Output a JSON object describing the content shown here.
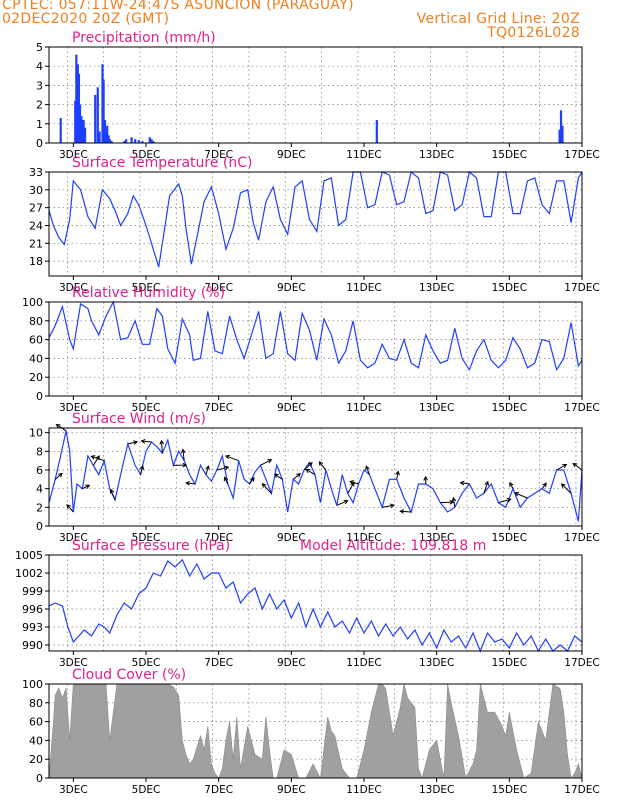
{
  "header": {
    "line1": "CPTEC:   057:11W-24:47S   ASUNCION (PARAGUAY)",
    "line2": "02DEC2020 20Z (GMT)",
    "grid_note": "Vertical Grid Line: 20Z",
    "code": "TQ0126L028"
  },
  "colors": {
    "header": "#f08020",
    "title": "#e0208c",
    "line": "#1f3fff",
    "cloud": "#a0a0a0",
    "wind_arrow": "#000000"
  },
  "chart_data": [
    {
      "id": "precip",
      "type": "bar",
      "title": "Precipitation (mm/h)",
      "x_unit": "days since 02DEC2020 00Z",
      "xlim": [
        2.33,
        17.0
      ],
      "x_tick_labels": [
        "3DEC",
        "5DEC",
        "7DEC",
        "9DEC",
        "11DEC",
        "13DEC",
        "15DEC",
        "17DEC"
      ],
      "ylim": [
        0,
        5
      ],
      "y_ticks": [
        0,
        1,
        2,
        3,
        4,
        5
      ],
      "grid": true,
      "x": [
        2.65,
        3.05,
        3.08,
        3.12,
        3.15,
        3.18,
        3.22,
        3.25,
        3.28,
        3.32,
        3.6,
        3.67,
        3.72,
        3.8,
        3.83,
        3.87,
        3.9,
        3.93,
        3.97,
        4.0,
        4.05,
        4.4,
        4.45,
        4.6,
        4.7,
        4.8,
        4.9,
        5.1,
        5.15,
        5.2,
        11.35,
        16.38,
        16.42,
        16.46
      ],
      "values": [
        1.3,
        2.2,
        4.6,
        4.1,
        3.6,
        2.0,
        1.4,
        1.0,
        1.2,
        0.8,
        2.5,
        2.9,
        0.6,
        4.1,
        3.3,
        1.2,
        0.7,
        0.9,
        0.4,
        0.2,
        0.1,
        0.1,
        0.2,
        0.3,
        0.2,
        0.15,
        0.1,
        0.3,
        0.2,
        0.1,
        1.2,
        0.7,
        1.7,
        0.9
      ]
    },
    {
      "id": "temp",
      "type": "line",
      "title": "Surface Temperature (nC)",
      "x_unit": "days since 02DEC2020 00Z",
      "xlim": [
        2.33,
        17.0
      ],
      "x_tick_labels": [
        "3DEC",
        "5DEC",
        "7DEC",
        "9DEC",
        "11DEC",
        "13DEC",
        "15DEC",
        "17DEC"
      ],
      "ylim": [
        15.5,
        33
      ],
      "y_ticks": [
        18,
        21,
        24,
        27,
        30,
        33
      ],
      "grid": true,
      "x": [
        2.33,
        2.45,
        2.6,
        2.75,
        2.9,
        3.0,
        3.2,
        3.4,
        3.6,
        3.8,
        4.0,
        4.15,
        4.3,
        4.5,
        4.65,
        4.8,
        5.0,
        5.2,
        5.35,
        5.5,
        5.65,
        5.9,
        6.0,
        6.1,
        6.25,
        6.4,
        6.6,
        6.8,
        7.0,
        7.2,
        7.4,
        7.6,
        7.8,
        7.95,
        8.1,
        8.3,
        8.5,
        8.7,
        8.9,
        9.1,
        9.3,
        9.5,
        9.7,
        9.9,
        10.1,
        10.3,
        10.5,
        10.7,
        10.9,
        11.1,
        11.3,
        11.5,
        11.7,
        11.9,
        12.1,
        12.3,
        12.5,
        12.7,
        12.9,
        13.1,
        13.3,
        13.5,
        13.7,
        13.9,
        14.1,
        14.3,
        14.5,
        14.7,
        14.9,
        15.1,
        15.3,
        15.5,
        15.7,
        15.9,
        16.1,
        16.3,
        16.5,
        16.7,
        16.9,
        17.0
      ],
      "values": [
        26.5,
        24.0,
        22.0,
        20.8,
        25.0,
        31.5,
        30.0,
        25.5,
        23.5,
        30.0,
        28.5,
        26.5,
        24.0,
        26.0,
        29.0,
        27.5,
        24.0,
        20.0,
        17.0,
        23.0,
        29.0,
        31.0,
        29.0,
        23.5,
        17.5,
        22.0,
        28.0,
        30.5,
        26.0,
        20.0,
        23.5,
        29.5,
        30.0,
        24.5,
        21.5,
        28.0,
        30.5,
        25.0,
        22.5,
        30.5,
        31.5,
        25.0,
        23.0,
        31.5,
        32.0,
        24.0,
        25.0,
        33.0,
        33.0,
        27.0,
        27.5,
        33.0,
        32.5,
        27.5,
        28.0,
        33.0,
        32.0,
        26.0,
        26.5,
        33.0,
        32.5,
        26.5,
        27.5,
        33.0,
        32.0,
        25.5,
        25.5,
        33.0,
        33.0,
        26.0,
        26.0,
        31.5,
        32.0,
        27.5,
        26.0,
        31.5,
        31.5,
        24.5,
        32.0,
        33.0
      ]
    },
    {
      "id": "rh",
      "type": "line",
      "title": "Relative Humidity (%)",
      "x_unit": "days since 02DEC2020 00Z",
      "xlim": [
        2.33,
        17.0
      ],
      "x_tick_labels": [
        "3DEC",
        "5DEC",
        "7DEC",
        "9DEC",
        "11DEC",
        "13DEC",
        "15DEC",
        "17DEC"
      ],
      "ylim": [
        0,
        100
      ],
      "y_ticks": [
        0,
        20,
        40,
        60,
        80,
        100
      ],
      "grid": true,
      "x": [
        2.33,
        2.5,
        2.7,
        2.9,
        3.0,
        3.2,
        3.4,
        3.5,
        3.7,
        3.9,
        4.1,
        4.3,
        4.5,
        4.7,
        4.9,
        5.1,
        5.3,
        5.45,
        5.6,
        5.8,
        6.0,
        6.2,
        6.3,
        6.5,
        6.7,
        6.9,
        7.1,
        7.3,
        7.5,
        7.7,
        7.9,
        8.1,
        8.3,
        8.5,
        8.7,
        8.9,
        9.1,
        9.3,
        9.5,
        9.7,
        9.9,
        10.1,
        10.3,
        10.5,
        10.7,
        10.9,
        11.1,
        11.3,
        11.5,
        11.7,
        11.9,
        12.1,
        12.3,
        12.5,
        12.7,
        12.9,
        13.1,
        13.3,
        13.5,
        13.7,
        13.9,
        14.1,
        14.3,
        14.5,
        14.7,
        14.9,
        15.1,
        15.3,
        15.5,
        15.7,
        15.9,
        16.1,
        16.3,
        16.5,
        16.7,
        16.9,
        17.0
      ],
      "values": [
        62,
        75,
        95,
        60,
        50,
        98,
        93,
        80,
        65,
        85,
        100,
        60,
        62,
        80,
        55,
        55,
        93,
        85,
        50,
        35,
        82,
        65,
        38,
        40,
        90,
        48,
        45,
        85,
        60,
        40,
        65,
        90,
        40,
        45,
        90,
        45,
        38,
        88,
        70,
        38,
        82,
        65,
        35,
        48,
        80,
        38,
        30,
        35,
        55,
        40,
        38,
        60,
        35,
        30,
        65,
        48,
        35,
        38,
        72,
        40,
        28,
        48,
        60,
        38,
        30,
        38,
        62,
        50,
        30,
        35,
        60,
        58,
        28,
        40,
        78,
        32,
        38
      ]
    },
    {
      "id": "wind",
      "type": "line",
      "title": "Surface Wind (m/s)",
      "x_unit": "days since 02DEC2020 00Z",
      "xlim": [
        2.33,
        17.0
      ],
      "x_tick_labels": [
        "3DEC",
        "5DEC",
        "7DEC",
        "9DEC",
        "11DEC",
        "13DEC",
        "15DEC",
        "17DEC"
      ],
      "ylim": [
        0,
        10.5
      ],
      "y_ticks": [
        0,
        2,
        4,
        6,
        8,
        10
      ],
      "grid": true,
      "x": [
        2.33,
        2.5,
        2.65,
        2.8,
        2.9,
        3.0,
        3.1,
        3.25,
        3.4,
        3.55,
        3.7,
        3.85,
        4.0,
        4.15,
        4.3,
        4.5,
        4.7,
        4.85,
        5.0,
        5.15,
        5.3,
        5.45,
        5.6,
        5.75,
        5.9,
        6.05,
        6.2,
        6.35,
        6.5,
        6.65,
        6.8,
        6.95,
        7.1,
        7.25,
        7.4,
        7.55,
        7.7,
        7.85,
        8.0,
        8.15,
        8.3,
        8.45,
        8.6,
        8.75,
        8.9,
        9.05,
        9.2,
        9.35,
        9.5,
        9.65,
        9.8,
        9.95,
        10.1,
        10.25,
        10.4,
        10.55,
        10.7,
        10.85,
        11.0,
        11.15,
        11.3,
        11.5,
        11.7,
        11.9,
        12.1,
        12.3,
        12.5,
        12.7,
        12.9,
        13.1,
        13.3,
        13.5,
        13.7,
        13.9,
        14.1,
        14.3,
        14.5,
        14.7,
        14.9,
        15.1,
        15.3,
        15.5,
        15.7,
        15.9,
        16.1,
        16.3,
        16.5,
        16.7,
        16.9,
        17.0
      ],
      "values": [
        2.5,
        5.0,
        7.5,
        10.2,
        8.0,
        1.5,
        4.5,
        4.0,
        7.5,
        6.5,
        5.5,
        7.0,
        4.0,
        2.8,
        5.5,
        8.8,
        6.5,
        5.5,
        8.0,
        9.0,
        8.5,
        7.8,
        9.2,
        6.5,
        8.0,
        7.0,
        5.5,
        4.5,
        6.5,
        5.5,
        4.8,
        6.0,
        7.5,
        4.5,
        3.0,
        7.0,
        5.0,
        4.5,
        5.8,
        6.5,
        5.0,
        3.5,
        6.5,
        5.0,
        1.5,
        5.0,
        4.5,
        6.0,
        6.8,
        5.5,
        2.5,
        6.0,
        4.0,
        2.2,
        5.5,
        3.5,
        2.5,
        4.5,
        6.0,
        5.5,
        4.0,
        2.0,
        5.0,
        5.0,
        3.0,
        1.5,
        4.5,
        4.5,
        4.0,
        2.5,
        1.5,
        2.0,
        3.5,
        4.5,
        3.0,
        3.5,
        4.5,
        2.5,
        2.0,
        4.0,
        2.0,
        3.0,
        3.5,
        4.0,
        3.5,
        6.0,
        6.0,
        3.5,
        0.5,
        6.0
      ]
    },
    {
      "id": "pres",
      "type": "line",
      "title": "Surface Pressure (hPa)",
      "annotation": "Model Altitude: 109.818 m",
      "x_unit": "days since 02DEC2020 00Z",
      "xlim": [
        2.33,
        17.0
      ],
      "x_tick_labels": [
        "3DEC",
        "5DEC",
        "7DEC",
        "9DEC",
        "11DEC",
        "13DEC",
        "15DEC",
        "17DEC"
      ],
      "ylim": [
        989,
        1005
      ],
      "y_ticks": [
        990,
        993,
        996,
        999,
        1002,
        1005
      ],
      "grid": true,
      "x": [
        2.33,
        2.5,
        2.7,
        2.85,
        3.0,
        3.15,
        3.3,
        3.5,
        3.7,
        3.85,
        4.0,
        4.2,
        4.4,
        4.6,
        4.8,
        5.0,
        5.2,
        5.4,
        5.6,
        5.8,
        6.0,
        6.2,
        6.4,
        6.6,
        6.8,
        7.0,
        7.2,
        7.4,
        7.6,
        7.8,
        8.0,
        8.2,
        8.4,
        8.6,
        8.8,
        9.0,
        9.2,
        9.4,
        9.6,
        9.8,
        10.0,
        10.2,
        10.4,
        10.6,
        10.8,
        11.0,
        11.2,
        11.4,
        11.6,
        11.8,
        12.0,
        12.2,
        12.4,
        12.6,
        12.8,
        13.0,
        13.2,
        13.4,
        13.6,
        13.8,
        14.0,
        14.2,
        14.4,
        14.6,
        14.8,
        15.0,
        15.2,
        15.4,
        15.6,
        15.8,
        16.0,
        16.2,
        16.4,
        16.6,
        16.8,
        17.0
      ],
      "values": [
        996.5,
        997.0,
        996.5,
        993.0,
        990.5,
        991.5,
        992.5,
        991.5,
        993.5,
        993.0,
        992.0,
        995.0,
        997.0,
        996.0,
        998.5,
        999.5,
        1002.0,
        1001.5,
        1004.0,
        1003.0,
        1004.2,
        1001.5,
        1003.5,
        1001.0,
        1002.0,
        1002.0,
        999.5,
        1000.5,
        997.0,
        998.5,
        999.5,
        996.0,
        998.5,
        996.0,
        997.5,
        994.5,
        997.0,
        993.0,
        996.0,
        993.0,
        995.5,
        993.0,
        994.0,
        992.0,
        994.5,
        992.0,
        994.0,
        991.5,
        993.5,
        991.5,
        993.0,
        991.0,
        992.5,
        990.0,
        992.0,
        989.5,
        992.5,
        990.5,
        991.5,
        989.5,
        992.0,
        989.0,
        992.0,
        990.5,
        991.0,
        989.5,
        992.0,
        990.0,
        991.5,
        989.0,
        991.0,
        989.0,
        990.0,
        989.0,
        991.5,
        990.5
      ]
    },
    {
      "id": "cloud",
      "type": "area",
      "title": "Cloud Cover (%)",
      "x_unit": "days since 02DEC2020 00Z",
      "xlim": [
        2.33,
        17.0
      ],
      "x_tick_labels": [
        "3DEC",
        "5DEC",
        "7DEC",
        "9DEC",
        "11DEC",
        "13DEC",
        "15DEC",
        "17DEC"
      ],
      "ylim": [
        0,
        100
      ],
      "y_ticks": [
        0,
        20,
        40,
        60,
        80,
        100
      ],
      "grid": true,
      "x": [
        2.33,
        2.45,
        2.5,
        2.6,
        2.7,
        2.8,
        2.9,
        3.0,
        3.15,
        3.3,
        3.45,
        3.6,
        3.75,
        3.9,
        4.0,
        4.2,
        4.4,
        4.6,
        4.8,
        5.0,
        5.2,
        5.4,
        5.6,
        5.75,
        5.9,
        6.0,
        6.1,
        6.2,
        6.3,
        6.5,
        6.6,
        6.7,
        6.8,
        6.9,
        7.0,
        7.1,
        7.2,
        7.3,
        7.4,
        7.5,
        7.6,
        7.8,
        8.0,
        8.2,
        8.3,
        8.4,
        8.5,
        8.6,
        8.8,
        9.0,
        9.2,
        9.4,
        9.6,
        9.8,
        10.0,
        10.1,
        10.2,
        10.4,
        10.6,
        10.8,
        11.0,
        11.2,
        11.4,
        11.5,
        11.6,
        11.8,
        12.0,
        12.1,
        12.2,
        12.4,
        12.5,
        12.6,
        12.8,
        13.0,
        13.2,
        13.3,
        13.4,
        13.6,
        13.8,
        14.0,
        14.1,
        14.2,
        14.4,
        14.6,
        14.8,
        14.9,
        15.0,
        15.2,
        15.4,
        15.6,
        15.8,
        16.0,
        16.2,
        16.4,
        16.5,
        16.6,
        16.7,
        16.8,
        16.9,
        17.0
      ],
      "values": [
        0,
        60,
        88,
        96,
        85,
        96,
        40,
        100,
        100,
        100,
        100,
        100,
        100,
        100,
        40,
        100,
        100,
        100,
        100,
        100,
        100,
        100,
        100,
        97,
        88,
        40,
        25,
        15,
        20,
        45,
        30,
        55,
        15,
        5,
        0,
        10,
        40,
        60,
        20,
        65,
        10,
        55,
        25,
        20,
        65,
        30,
        0,
        0,
        30,
        25,
        0,
        0,
        15,
        0,
        65,
        50,
        45,
        10,
        0,
        0,
        30,
        70,
        100,
        100,
        95,
        45,
        75,
        100,
        85,
        75,
        10,
        0,
        30,
        40,
        0,
        100,
        80,
        45,
        0,
        15,
        30,
        100,
        70,
        70,
        55,
        45,
        70,
        30,
        0,
        5,
        60,
        40,
        100,
        95,
        70,
        25,
        0,
        5,
        15,
        0
      ]
    }
  ]
}
